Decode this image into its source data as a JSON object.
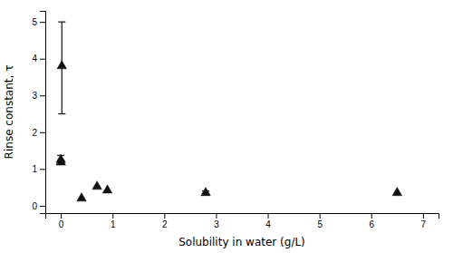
{
  "chart_data": {
    "type": "scatter",
    "x": [
      0.02,
      0.0,
      0.0,
      0.4,
      0.7,
      0.9,
      2.8,
      6.5
    ],
    "values": [
      3.8,
      1.25,
      1.18,
      0.2,
      0.52,
      0.42,
      0.35,
      0.35
    ],
    "yerr_low": [
      1.3,
      0.1,
      0.05,
      0.0,
      0.0,
      0.0,
      0.05,
      0.0
    ],
    "yerr_high": [
      1.2,
      0.12,
      0.05,
      0.0,
      0.0,
      0.0,
      0.05,
      0.0
    ],
    "xlabel": "Solubility in water (g/L)",
    "ylabel": "Rinse constant, τ",
    "xlim": [
      -0.3,
      7.3
    ],
    "ylim": [
      -0.2,
      5.3
    ],
    "xticks": [
      0,
      1,
      2,
      3,
      4,
      5,
      6,
      7
    ],
    "yticks": [
      0,
      1,
      2,
      3,
      4,
      5
    ],
    "marker": "triangle",
    "color": "#111111",
    "grid": false
  }
}
